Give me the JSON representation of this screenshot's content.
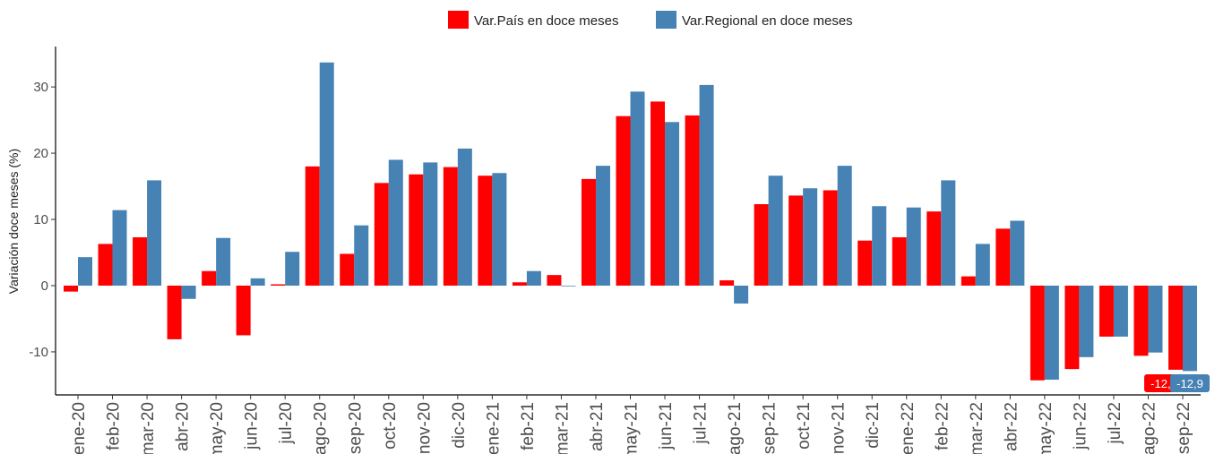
{
  "chart_data": {
    "type": "bar",
    "y_label": "Variación doce meses (%)",
    "categories": [
      "ene-20",
      "feb-20",
      "mar-20",
      "abr-20",
      "may-20",
      "jun-20",
      "jul-20",
      "ago-20",
      "sep-20",
      "oct-20",
      "nov-20",
      "dic-20",
      "ene-21",
      "feb-21",
      "mar-21",
      "abr-21",
      "may-21",
      "jun-21",
      "jul-21",
      "ago-21",
      "sep-21",
      "oct-21",
      "nov-21",
      "dic-21",
      "ene-22",
      "feb-22",
      "mar-22",
      "abr-22",
      "may-22",
      "jun-22",
      "jul-22",
      "ago-22",
      "sep-22"
    ],
    "series": [
      {
        "name": "Var.País en doce meses",
        "color": "#ff0000",
        "values": [
          -0.9,
          6.3,
          7.3,
          -8.1,
          2.2,
          -7.5,
          0.2,
          18.0,
          4.8,
          15.5,
          16.8,
          17.9,
          16.6,
          0.5,
          1.6,
          16.1,
          25.6,
          27.8,
          25.7,
          0.8,
          12.3,
          13.6,
          14.4,
          6.8,
          7.3,
          11.2,
          1.4,
          8.6,
          -14.3,
          -12.6,
          -7.7,
          -10.6,
          -12.7
        ],
        "value_labels": [
          null,
          null,
          null,
          null,
          null,
          null,
          null,
          null,
          null,
          null,
          null,
          null,
          null,
          null,
          null,
          null,
          null,
          null,
          null,
          null,
          null,
          null,
          null,
          null,
          null,
          null,
          null,
          null,
          null,
          null,
          null,
          null,
          "-12,7"
        ]
      },
      {
        "name": "Var.Regional en doce meses",
        "color": "#4682b4",
        "values": [
          4.3,
          11.4,
          15.9,
          -2.0,
          7.2,
          1.1,
          5.1,
          33.7,
          9.1,
          19.0,
          18.6,
          20.7,
          17.0,
          2.2,
          -0.1,
          18.1,
          29.3,
          24.7,
          30.3,
          -2.7,
          16.6,
          14.7,
          18.1,
          12.0,
          11.8,
          15.9,
          6.3,
          9.8,
          -14.2,
          -10.8,
          -7.7,
          -10.1,
          -12.9
        ],
        "value_labels": [
          null,
          null,
          null,
          null,
          null,
          null,
          null,
          null,
          null,
          null,
          null,
          null,
          null,
          null,
          null,
          null,
          null,
          null,
          null,
          null,
          null,
          null,
          null,
          null,
          null,
          null,
          null,
          null,
          null,
          null,
          null,
          null,
          "-12,9"
        ]
      }
    ],
    "ylim": [
      -16.5,
      36.1
    ],
    "yticks": [
      -10,
      0,
      10,
      20,
      30
    ],
    "grid": false,
    "legend": "top"
  }
}
